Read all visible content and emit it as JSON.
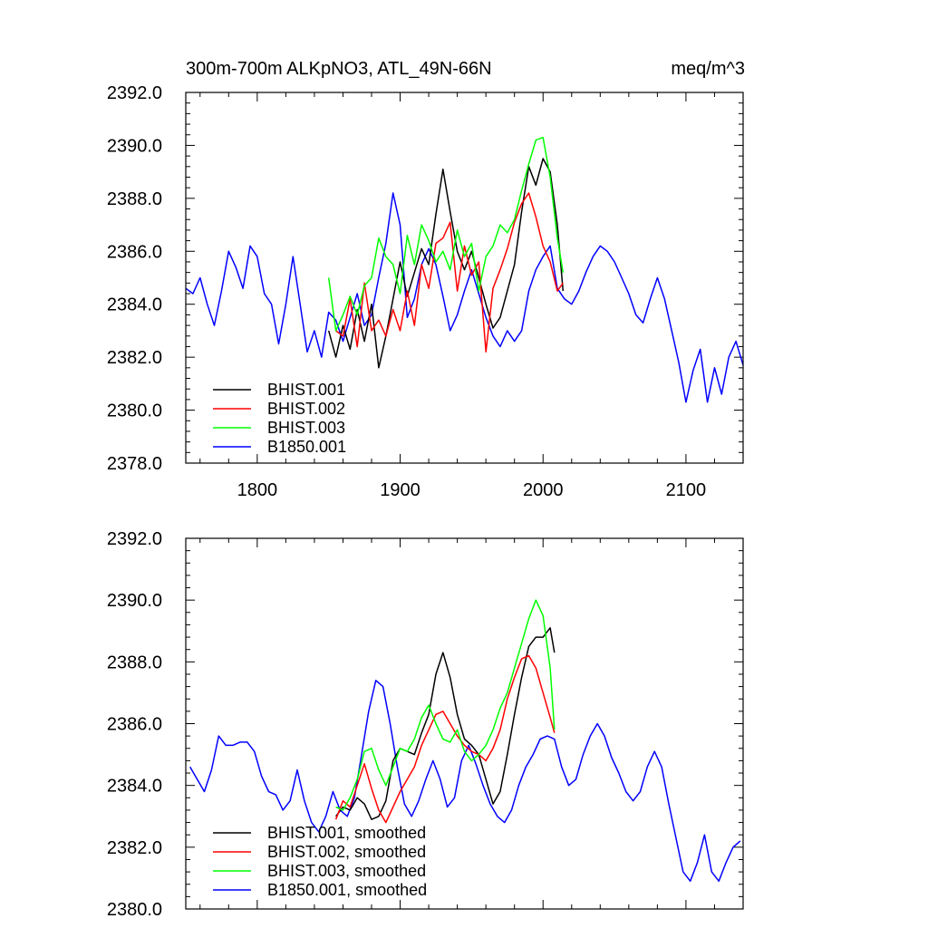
{
  "chart_data": [
    {
      "type": "line",
      "title": "300m-700m ALKpNO3, ATL_49N-66N",
      "title_right": "meq/m^3",
      "xlim": [
        1750,
        2140
      ],
      "ylim": [
        2378.0,
        2392.0
      ],
      "xticks": [
        1800,
        1900,
        2000,
        2100
      ],
      "xticklabels": [
        "1800",
        "1900",
        "2000",
        "2100"
      ],
      "yticks": [
        2378.0,
        2380.0,
        2382.0,
        2384.0,
        2386.0,
        2388.0,
        2390.0,
        2392.0
      ],
      "yticklabels": [
        "2378.0",
        "2380.0",
        "2382.0",
        "2384.0",
        "2386.0",
        "2388.0",
        "2390.0",
        "2392.0"
      ],
      "legend_position": "lower-left",
      "series": [
        {
          "name": "BHIST.001",
          "color": "#000000",
          "x": [
            1850,
            1855,
            1860,
            1865,
            1870,
            1875,
            1880,
            1885,
            1890,
            1895,
            1900,
            1905,
            1910,
            1915,
            1920,
            1925,
            1930,
            1935,
            1940,
            1945,
            1950,
            1955,
            1960,
            1965,
            1970,
            1975,
            1980,
            1985,
            1990,
            1995,
            2000,
            2005,
            2010,
            2014
          ],
          "y": [
            2383.0,
            2382.0,
            2383.2,
            2382.3,
            2383.8,
            2382.6,
            2384.0,
            2381.6,
            2382.8,
            2384.2,
            2385.6,
            2384.3,
            2385.2,
            2386.1,
            2385.5,
            2387.4,
            2389.1,
            2387.5,
            2386.0,
            2385.3,
            2386.0,
            2385.0,
            2384.0,
            2383.1,
            2383.5,
            2384.5,
            2385.5,
            2387.5,
            2389.2,
            2388.5,
            2389.5,
            2389.0,
            2387.0,
            2384.5
          ]
        },
        {
          "name": "BHIST.002",
          "color": "#ff0000",
          "x": [
            1855,
            1860,
            1865,
            1870,
            1875,
            1880,
            1885,
            1890,
            1895,
            1900,
            1905,
            1910,
            1915,
            1920,
            1925,
            1930,
            1935,
            1940,
            1945,
            1950,
            1955,
            1960,
            1965,
            1970,
            1975,
            1980,
            1985,
            1990,
            1995,
            2000,
            2005,
            2010,
            2014
          ],
          "y": [
            2383.0,
            2382.8,
            2384.2,
            2382.4,
            2384.8,
            2383.0,
            2383.4,
            2382.8,
            2383.8,
            2383.0,
            2384.5,
            2383.2,
            2385.5,
            2384.6,
            2386.3,
            2386.5,
            2387.1,
            2384.5,
            2386.2,
            2385.1,
            2385.6,
            2382.2,
            2384.6,
            2385.3,
            2386.1,
            2387.1,
            2387.8,
            2388.2,
            2387.3,
            2386.2,
            2385.6,
            2384.5,
            2384.8
          ]
        },
        {
          "name": "BHIST.003",
          "color": "#00ff00",
          "x": [
            1850,
            1855,
            1860,
            1865,
            1870,
            1875,
            1880,
            1885,
            1890,
            1895,
            1900,
            1905,
            1910,
            1915,
            1920,
            1925,
            1930,
            1935,
            1940,
            1945,
            1950,
            1955,
            1960,
            1965,
            1970,
            1975,
            1980,
            1985,
            1990,
            1995,
            2000,
            2005,
            2010,
            2014
          ],
          "y": [
            2385.0,
            2383.0,
            2383.6,
            2384.3,
            2383.6,
            2384.7,
            2385.0,
            2386.5,
            2385.8,
            2385.5,
            2384.4,
            2386.6,
            2385.5,
            2387.0,
            2386.4,
            2385.6,
            2386.0,
            2385.3,
            2386.8,
            2385.8,
            2386.3,
            2384.5,
            2385.8,
            2386.2,
            2387.0,
            2386.7,
            2387.2,
            2388.3,
            2389.3,
            2390.2,
            2390.3,
            2388.8,
            2386.5,
            2385.2
          ]
        },
        {
          "name": "B1850.001",
          "color": "#0000ff",
          "x": [
            1750,
            1755,
            1760,
            1765,
            1770,
            1775,
            1780,
            1785,
            1790,
            1795,
            1800,
            1805,
            1810,
            1815,
            1820,
            1825,
            1830,
            1835,
            1840,
            1845,
            1850,
            1855,
            1860,
            1865,
            1870,
            1875,
            1880,
            1885,
            1890,
            1895,
            1900,
            1905,
            1910,
            1915,
            1920,
            1925,
            1930,
            1935,
            1940,
            1945,
            1950,
            1955,
            1960,
            1965,
            1970,
            1975,
            1980,
            1985,
            1990,
            1995,
            2000,
            2005,
            2010,
            2015,
            2020,
            2025,
            2030,
            2035,
            2040,
            2045,
            2050,
            2055,
            2060,
            2065,
            2070,
            2075,
            2080,
            2085,
            2090,
            2095,
            2100,
            2105,
            2110,
            2115,
            2120,
            2125,
            2130,
            2135,
            2140
          ],
          "y": [
            2384.6,
            2384.4,
            2385.0,
            2384.0,
            2383.2,
            2384.5,
            2386.0,
            2385.4,
            2384.6,
            2386.2,
            2385.8,
            2384.4,
            2384.0,
            2382.5,
            2384.0,
            2385.8,
            2384.0,
            2382.2,
            2383.0,
            2382.0,
            2383.7,
            2383.4,
            2382.6,
            2383.5,
            2384.4,
            2383.2,
            2383.6,
            2385.0,
            2386.3,
            2388.2,
            2387.0,
            2383.5,
            2384.2,
            2385.5,
            2386.1,
            2385.5,
            2384.3,
            2383.0,
            2383.6,
            2384.5,
            2385.3,
            2384.4,
            2383.5,
            2382.8,
            2382.4,
            2383.0,
            2382.6,
            2383.0,
            2384.5,
            2385.3,
            2385.8,
            2386.2,
            2384.6,
            2384.2,
            2384.0,
            2384.5,
            2385.2,
            2385.8,
            2386.2,
            2386.0,
            2385.6,
            2385.0,
            2384.4,
            2383.6,
            2383.3,
            2384.2,
            2385.0,
            2384.2,
            2383.0,
            2381.8,
            2380.3,
            2381.5,
            2382.3,
            2380.3,
            2381.6,
            2380.6,
            2382.0,
            2382.6,
            2381.7
          ]
        }
      ]
    },
    {
      "type": "line",
      "title": "",
      "xlim": [
        1750,
        2140
      ],
      "ylim": [
        2380.0,
        2392.0
      ],
      "xticks": [
        1800,
        1900,
        2000,
        2100
      ],
      "yticks": [
        2380.0,
        2382.0,
        2384.0,
        2386.0,
        2388.0,
        2390.0,
        2392.0
      ],
      "yticklabels": [
        "2380.0",
        "2382.0",
        "2384.0",
        "2386.0",
        "2388.0",
        "2390.0",
        "2392.0"
      ],
      "legend_position": "lower-left",
      "series": [
        {
          "name": "BHIST.001, smoothed",
          "color": "#000000",
          "x": [
            1855,
            1860,
            1865,
            1870,
            1875,
            1880,
            1885,
            1890,
            1895,
            1900,
            1905,
            1910,
            1915,
            1920,
            1925,
            1930,
            1935,
            1940,
            1945,
            1950,
            1955,
            1960,
            1965,
            1970,
            1975,
            1980,
            1985,
            1990,
            1995,
            2000,
            2005,
            2008
          ],
          "y": [
            2383.0,
            2383.3,
            2383.2,
            2383.6,
            2383.4,
            2382.9,
            2383.0,
            2383.5,
            2384.8,
            2385.2,
            2385.1,
            2385.0,
            2385.7,
            2386.3,
            2387.6,
            2388.3,
            2387.5,
            2386.3,
            2385.5,
            2385.3,
            2385.0,
            2384.2,
            2383.4,
            2383.8,
            2385.0,
            2386.3,
            2387.5,
            2388.5,
            2388.8,
            2388.8,
            2389.1,
            2388.3
          ]
        },
        {
          "name": "BHIST.002, smoothed",
          "color": "#ff0000",
          "x": [
            1855,
            1860,
            1865,
            1870,
            1875,
            1880,
            1885,
            1890,
            1895,
            1900,
            1905,
            1910,
            1915,
            1920,
            1925,
            1930,
            1935,
            1940,
            1945,
            1950,
            1955,
            1960,
            1965,
            1970,
            1975,
            1980,
            1985,
            1990,
            1995,
            2000,
            2005,
            2008
          ],
          "y": [
            2382.9,
            2383.5,
            2383.3,
            2384.0,
            2384.7,
            2383.9,
            2383.2,
            2382.8,
            2383.3,
            2383.8,
            2384.2,
            2384.6,
            2385.3,
            2385.8,
            2386.3,
            2386.4,
            2386.0,
            2385.6,
            2385.3,
            2385.1,
            2385.0,
            2384.8,
            2385.2,
            2385.8,
            2386.8,
            2387.5,
            2388.1,
            2388.2,
            2387.8,
            2387.0,
            2386.2,
            2385.7
          ]
        },
        {
          "name": "BHIST.003, smoothed",
          "color": "#00ff00",
          "x": [
            1855,
            1860,
            1865,
            1870,
            1875,
            1880,
            1885,
            1890,
            1895,
            1900,
            1905,
            1910,
            1915,
            1920,
            1925,
            1930,
            1935,
            1940,
            1945,
            1950,
            1955,
            1960,
            1965,
            1970,
            1975,
            1980,
            1985,
            1990,
            1995,
            2000,
            2005,
            2008
          ],
          "y": [
            2383.3,
            2383.2,
            2383.6,
            2384.2,
            2385.1,
            2385.2,
            2384.5,
            2384.0,
            2384.6,
            2385.2,
            2385.1,
            2385.5,
            2386.2,
            2386.6,
            2386.0,
            2385.5,
            2385.4,
            2385.8,
            2385.1,
            2384.8,
            2385.0,
            2385.3,
            2385.8,
            2386.5,
            2387.0,
            2387.8,
            2388.6,
            2389.4,
            2390.0,
            2389.5,
            2387.8,
            2385.8
          ]
        },
        {
          "name": "B1850.001, smoothed",
          "color": "#0000ff",
          "x": [
            1753,
            1758,
            1763,
            1768,
            1773,
            1778,
            1783,
            1788,
            1793,
            1798,
            1803,
            1808,
            1813,
            1818,
            1823,
            1828,
            1833,
            1838,
            1843,
            1848,
            1853,
            1858,
            1863,
            1868,
            1873,
            1878,
            1883,
            1888,
            1893,
            1898,
            1903,
            1908,
            1913,
            1918,
            1923,
            1928,
            1933,
            1938,
            1943,
            1948,
            1953,
            1958,
            1963,
            1968,
            1973,
            1978,
            1983,
            1988,
            1993,
            1998,
            2003,
            2008,
            2013,
            2018,
            2023,
            2028,
            2033,
            2038,
            2043,
            2048,
            2053,
            2058,
            2063,
            2068,
            2073,
            2078,
            2083,
            2088,
            2093,
            2098,
            2103,
            2108,
            2113,
            2118,
            2123,
            2128,
            2133,
            2138
          ],
          "y": [
            2384.6,
            2384.2,
            2383.8,
            2384.5,
            2385.6,
            2385.3,
            2385.3,
            2385.4,
            2385.4,
            2385.1,
            2384.3,
            2383.8,
            2383.7,
            2383.2,
            2383.5,
            2384.5,
            2383.5,
            2382.8,
            2382.5,
            2383.0,
            2383.8,
            2383.2,
            2383.0,
            2383.6,
            2385.0,
            2386.4,
            2387.4,
            2387.2,
            2386.0,
            2384.6,
            2383.4,
            2383.0,
            2383.5,
            2384.2,
            2384.8,
            2384.2,
            2383.3,
            2383.6,
            2384.8,
            2385.3,
            2384.7,
            2384.0,
            2383.4,
            2383.0,
            2382.8,
            2383.2,
            2384.0,
            2384.6,
            2385.0,
            2385.5,
            2385.6,
            2385.5,
            2384.6,
            2384.0,
            2384.2,
            2385.0,
            2385.6,
            2386.0,
            2385.6,
            2384.9,
            2384.4,
            2383.8,
            2383.5,
            2383.8,
            2384.6,
            2385.1,
            2384.6,
            2383.4,
            2382.3,
            2381.2,
            2380.9,
            2381.5,
            2382.4,
            2381.2,
            2380.9,
            2381.5,
            2382.0,
            2382.2
          ]
        }
      ]
    }
  ]
}
